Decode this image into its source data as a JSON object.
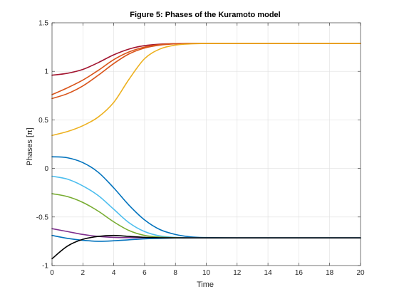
{
  "chart_data": {
    "type": "line",
    "title": "Figure 5: Phases of the Kuramoto model",
    "xlabel": "Time",
    "ylabel": "Phases [π]",
    "xlim": [
      0,
      20
    ],
    "ylim": [
      -1,
      1.5
    ],
    "xticks": [
      "0",
      "2",
      "4",
      "6",
      "8",
      "10",
      "12",
      "14",
      "16",
      "18",
      "20"
    ],
    "yticks": [
      "-1",
      "-0.5",
      "0",
      "0.5",
      "1",
      "1.5"
    ],
    "grid": true,
    "legend": "none",
    "x": [
      0,
      1,
      2,
      3,
      4,
      5,
      6,
      7,
      8,
      9,
      10,
      12,
      14,
      16,
      18,
      20
    ],
    "series": [
      {
        "color": "#A2142F",
        "values": [
          0.96,
          0.98,
          1.02,
          1.09,
          1.17,
          1.23,
          1.265,
          1.28,
          1.285,
          1.287,
          1.288,
          1.288,
          1.288,
          1.288,
          1.288,
          1.288
        ]
      },
      {
        "color": "#D95319",
        "values": [
          0.76,
          0.83,
          0.91,
          1.01,
          1.12,
          1.2,
          1.25,
          1.275,
          1.284,
          1.287,
          1.288,
          1.288,
          1.288,
          1.288,
          1.288,
          1.288
        ]
      },
      {
        "color": "#D95319",
        "values": [
          0.72,
          0.77,
          0.85,
          0.96,
          1.08,
          1.18,
          1.24,
          1.27,
          1.283,
          1.287,
          1.288,
          1.288,
          1.288,
          1.288,
          1.288,
          1.288
        ]
      },
      {
        "color": "#EDB120",
        "values": [
          0.34,
          0.38,
          0.44,
          0.53,
          0.68,
          0.92,
          1.13,
          1.23,
          1.27,
          1.283,
          1.287,
          1.288,
          1.288,
          1.288,
          1.288,
          1.288
        ]
      },
      {
        "color": "#0072BD",
        "values": [
          0.12,
          0.11,
          0.06,
          -0.04,
          -0.2,
          -0.38,
          -0.53,
          -0.63,
          -0.68,
          -0.705,
          -0.712,
          -0.715,
          -0.715,
          -0.715,
          -0.715,
          -0.715
        ]
      },
      {
        "color": "#4DBEEE",
        "values": [
          -0.08,
          -0.11,
          -0.18,
          -0.28,
          -0.42,
          -0.56,
          -0.65,
          -0.695,
          -0.71,
          -0.714,
          -0.715,
          -0.715,
          -0.715,
          -0.715,
          -0.715,
          -0.715
        ]
      },
      {
        "color": "#77AC30",
        "values": [
          -0.26,
          -0.29,
          -0.35,
          -0.44,
          -0.55,
          -0.64,
          -0.69,
          -0.707,
          -0.713,
          -0.715,
          -0.715,
          -0.715,
          -0.715,
          -0.715,
          -0.715,
          -0.715
        ]
      },
      {
        "color": "#7E2F8E",
        "values": [
          -0.62,
          -0.65,
          -0.68,
          -0.7,
          -0.71,
          -0.713,
          -0.714,
          -0.715,
          -0.715,
          -0.715,
          -0.715,
          -0.715,
          -0.715,
          -0.715,
          -0.715,
          -0.715
        ]
      },
      {
        "color": "#0072BD",
        "values": [
          -0.69,
          -0.72,
          -0.74,
          -0.75,
          -0.745,
          -0.735,
          -0.725,
          -0.72,
          -0.716,
          -0.715,
          -0.715,
          -0.715,
          -0.715,
          -0.715,
          -0.715,
          -0.715
        ]
      },
      {
        "color": "#000000",
        "values": [
          -0.93,
          -0.8,
          -0.73,
          -0.7,
          -0.69,
          -0.7,
          -0.71,
          -0.714,
          -0.715,
          -0.715,
          -0.715,
          -0.715,
          -0.715,
          -0.715,
          -0.715,
          -0.715
        ]
      }
    ]
  }
}
